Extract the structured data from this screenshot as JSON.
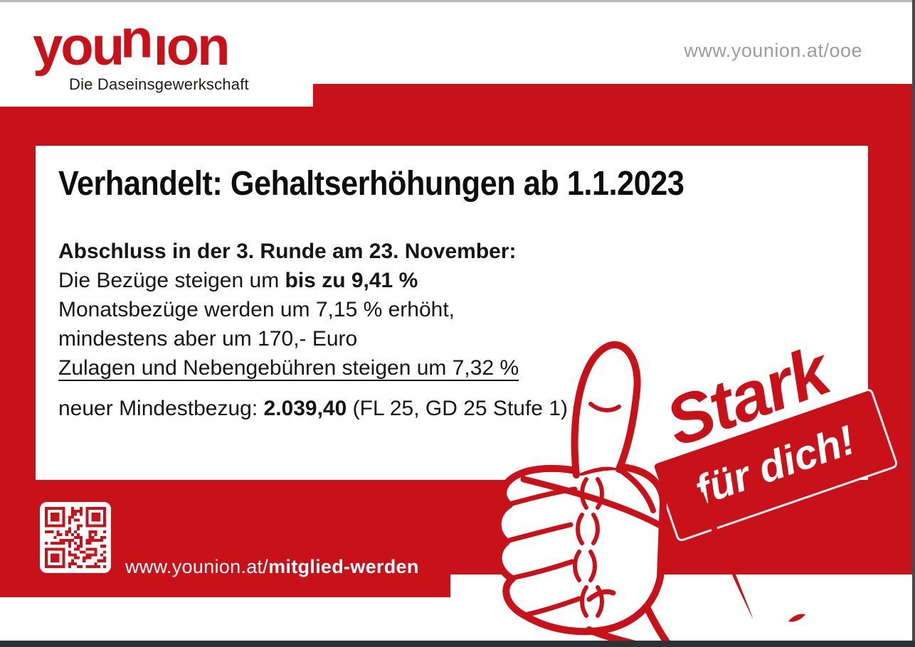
{
  "colors": {
    "red": "#c9111a",
    "dark-text": "#111111",
    "gray-url": "#9d9d9d",
    "tagline": "#1d1d1b"
  },
  "header": {
    "logo_part1": "you",
    "logo_part2": "u",
    "logo_part3": "ıon",
    "logo_full": "younion",
    "tagline": "Die Daseinsgewerkschaft",
    "website": "www.younion.at/ooe"
  },
  "card": {
    "title": "Verhandelt: Gehaltserhöhungen ab 1.1.2023",
    "body": {
      "line1_bold": "Abschluss in der 3. Runde am 23. November:",
      "line2_regular": "Die Bezüge steigen um ",
      "line2_bold": "bis zu 9,41 %",
      "line3": "Monatsbezüge werden um 7,15 % erhöht,",
      "line4": "mindestens aber um 170,- Euro",
      "line5_underlined": "Zulagen und Nebengebühren steigen um 7,32 %",
      "line6_regular": "neuer Mindestbezug: ",
      "line6_bold": "2.039,40",
      "line6_suffix": "  (FL 25, GD 25 Stufe 1)"
    }
  },
  "badge": {
    "stark": "Stark",
    "fuer_dich": "für dich!"
  },
  "footer": {
    "url_regular": "www.younion.at/",
    "url_bold": "mitglied-werden"
  },
  "icons": {
    "thumbs_up": "thumbs-up-hand-icon",
    "qr": "qr-code-icon"
  }
}
